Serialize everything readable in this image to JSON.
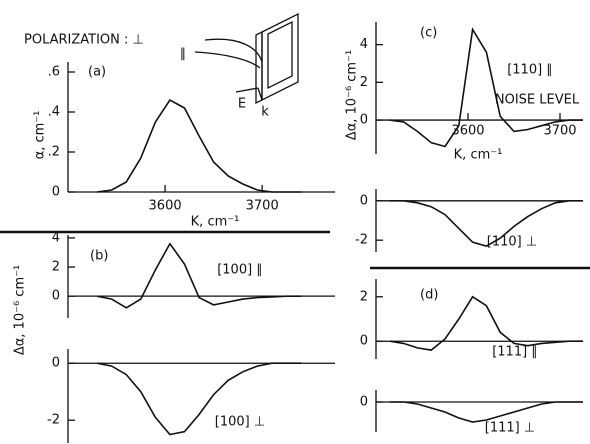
{
  "chart_data": [
    {
      "type": "line",
      "panel_label": "(a)",
      "ylabel": "α, cm⁻¹",
      "xlabel": "K, cm⁻¹",
      "annotations": [
        "POLARIZATION : ⊥",
        "∥",
        "E",
        "k"
      ],
      "x": [
        3530,
        3545,
        3560,
        3575,
        3590,
        3605,
        3620,
        3635,
        3650,
        3665,
        3680,
        3695,
        3710,
        3725,
        3740
      ],
      "values": [
        0,
        0.01,
        0.05,
        0.17,
        0.35,
        0.46,
        0.42,
        0.28,
        0.15,
        0.08,
        0.04,
        0.01,
        0,
        0,
        0
      ],
      "xlim": [
        3500,
        3775
      ],
      "ylim": [
        0,
        0.65
      ],
      "xticks": [
        3600,
        3700
      ],
      "yticks": [
        0,
        {
          "value": 0.2,
          "label": ".2"
        },
        {
          "value": 0.4,
          "label": ".4"
        },
        {
          "value": 0.6,
          "label": ".6"
        }
      ],
      "color": "#111111"
    },
    {
      "type": "line",
      "panel_label": "(b)",
      "ylabel": "Δα, 10⁻⁶ cm⁻¹",
      "annotations": [
        "[100] ∥"
      ],
      "x": [
        3530,
        3545,
        3560,
        3575,
        3590,
        3605,
        3620,
        3635,
        3650,
        3665,
        3680,
        3695,
        3710,
        3725,
        3740
      ],
      "values": [
        0,
        -0.2,
        -0.8,
        -0.2,
        1.8,
        3.6,
        2.2,
        -0.1,
        -0.6,
        -0.4,
        -0.2,
        -0.1,
        -0.05,
        0,
        0
      ],
      "xlim": [
        3500,
        3775
      ],
      "ylim": [
        -1.5,
        4.2
      ],
      "yticks": [
        0,
        2,
        4
      ],
      "color": "#111111"
    },
    {
      "type": "line",
      "annotations": [
        "[100] ⊥"
      ],
      "x": [
        3530,
        3545,
        3560,
        3575,
        3590,
        3605,
        3620,
        3635,
        3650,
        3665,
        3680,
        3695,
        3710,
        3725,
        3740
      ],
      "values": [
        0,
        -0.1,
        -0.4,
        -1.0,
        -1.9,
        -2.5,
        -2.4,
        -1.8,
        -1.1,
        -0.6,
        -0.3,
        -0.1,
        0,
        0,
        0
      ],
      "xlim": [
        3500,
        3775
      ],
      "ylim": [
        -2.8,
        0.5
      ],
      "yticks": [
        -2,
        0
      ],
      "color": "#111111"
    },
    {
      "type": "line",
      "panel_label": "(c)",
      "ylabel": "Δα, 10⁻⁶ cm⁻¹",
      "xlabel": "K, cm⁻¹",
      "annotations": [
        "[110] ∥",
        "NOISE LEVEL"
      ],
      "x": [
        3515,
        3530,
        3545,
        3560,
        3575,
        3590,
        3605,
        3620,
        3635,
        3650,
        3665,
        3680,
        3695,
        3710,
        3725
      ],
      "values": [
        0,
        -0.1,
        -0.6,
        -1.2,
        -1.4,
        -0.3,
        4.8,
        3.6,
        0.2,
        -0.6,
        -0.5,
        -0.3,
        -0.1,
        0,
        0
      ],
      "xlim": [
        3500,
        3725
      ],
      "ylim": [
        -1.8,
        5.2
      ],
      "xticks": [
        3600,
        3700
      ],
      "yticks": [
        0,
        2,
        4
      ],
      "color": "#111111"
    },
    {
      "type": "line",
      "annotations": [
        "[110] ⊥"
      ],
      "x": [
        3515,
        3530,
        3545,
        3560,
        3575,
        3590,
        3605,
        3620,
        3635,
        3650,
        3665,
        3680,
        3695,
        3710,
        3725
      ],
      "values": [
        0,
        0,
        -0.1,
        -0.3,
        -0.7,
        -1.4,
        -2.1,
        -2.3,
        -1.9,
        -1.3,
        -0.8,
        -0.4,
        -0.1,
        0,
        0
      ],
      "xlim": [
        3500,
        3725
      ],
      "ylim": [
        -2.6,
        0.6
      ],
      "yticks": [
        -2,
        0
      ],
      "color": "#111111"
    },
    {
      "type": "line",
      "panel_label": "(d)",
      "annotations": [
        "[111] ∥"
      ],
      "x": [
        3515,
        3530,
        3545,
        3560,
        3575,
        3590,
        3605,
        3620,
        3635,
        3650,
        3665,
        3680,
        3695,
        3710,
        3725
      ],
      "values": [
        0,
        -0.1,
        -0.3,
        -0.4,
        0.1,
        1.0,
        2.0,
        1.6,
        0.4,
        -0.1,
        -0.2,
        -0.1,
        -0.05,
        0,
        0
      ],
      "xlim": [
        3500,
        3725
      ],
      "ylim": [
        -0.8,
        2.8
      ],
      "yticks": [
        0,
        2
      ],
      "color": "#111111"
    },
    {
      "type": "line",
      "annotations": [
        "[111] ⊥"
      ],
      "x": [
        3515,
        3530,
        3545,
        3560,
        3575,
        3590,
        3605,
        3620,
        3635,
        3650,
        3665,
        3680,
        3695,
        3710,
        3725
      ],
      "values": [
        0,
        0,
        -0.1,
        -0.3,
        -0.5,
        -0.8,
        -1.0,
        -0.9,
        -0.7,
        -0.5,
        -0.3,
        -0.1,
        0,
        0,
        0
      ],
      "xlim": [
        3500,
        3725
      ],
      "ylim": [
        -1.5,
        0.6
      ],
      "yticks": [
        0
      ],
      "color": "#111111"
    }
  ]
}
